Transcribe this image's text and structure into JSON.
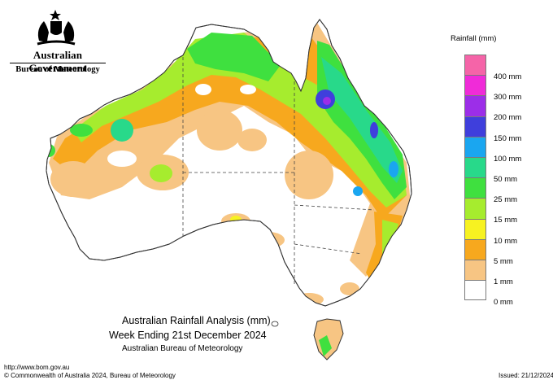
{
  "header": {
    "government": "Australian Government",
    "bureau": "Bureau of Meteorology"
  },
  "legend": {
    "title": "Rainfall (mm)",
    "items": [
      {
        "label": "",
        "color": "#f564a8"
      },
      {
        "label": "400 mm",
        "color": "#f02bd8"
      },
      {
        "label": "300 mm",
        "color": "#9c2ee8"
      },
      {
        "label": "200 mm",
        "color": "#3f3fdc"
      },
      {
        "label": "150 mm",
        "color": "#1aa6f0"
      },
      {
        "label": "100 mm",
        "color": "#28d98a"
      },
      {
        "label": "50 mm",
        "color": "#3fe03f"
      },
      {
        "label": "25 mm",
        "color": "#a6ec2e"
      },
      {
        "label": "15 mm",
        "color": "#f7f221"
      },
      {
        "label": "10 mm",
        "color": "#f7a81e"
      },
      {
        "label": "5 mm",
        "color": "#f7c583"
      },
      {
        "label": "1 mm",
        "color": "#ffffff"
      },
      {
        "label": "0 mm",
        "color": ""
      }
    ]
  },
  "caption": {
    "line1": "Australian Rainfall Analysis (mm)",
    "line2": "Week Ending 21st December 2024",
    "line3": "Australian Bureau of Meteorology"
  },
  "footer": {
    "url": "http://www.bom.gov.au",
    "copyright": "© Commonwealth of Australia 2024, Bureau of Meteorology",
    "issued": "Issued: 21/12/2024"
  }
}
